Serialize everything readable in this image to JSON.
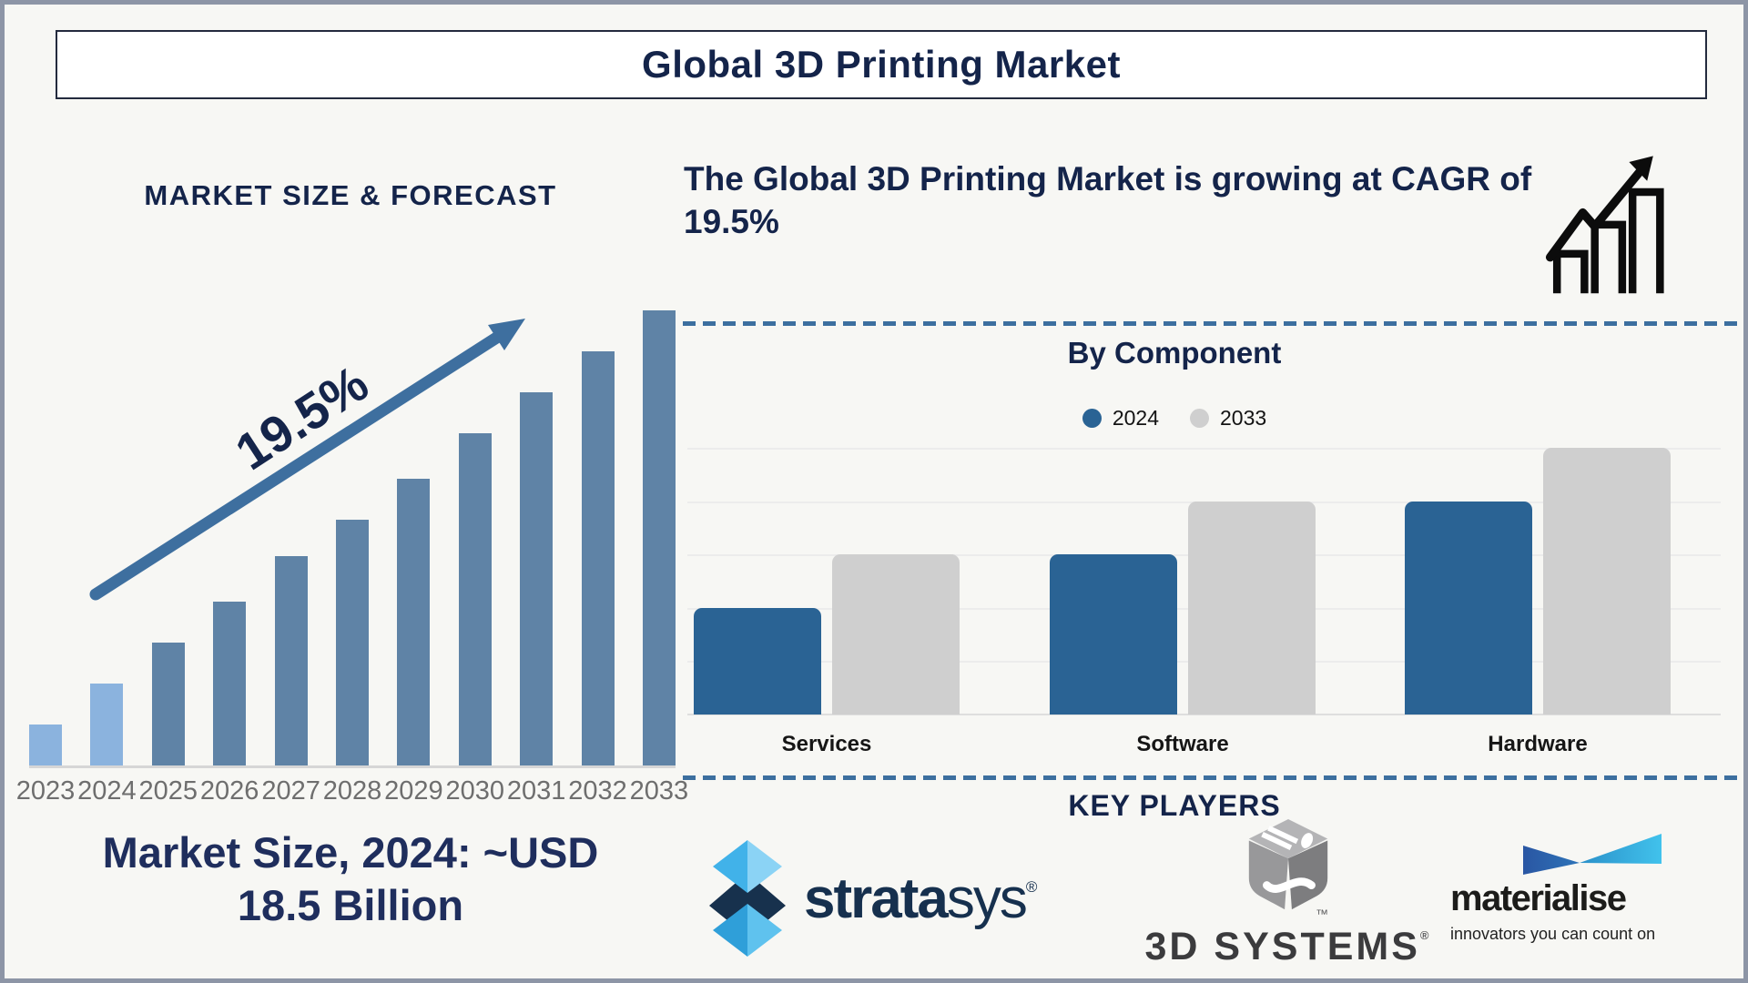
{
  "header": {
    "title": "Global 3D Printing Market"
  },
  "left_section": {
    "title": "MARKET SIZE & FORECAST",
    "cagr_label": "19.5%",
    "caption_line1": "Market Size, 2024: ~USD",
    "caption_line2": "18.5 Billion"
  },
  "right_section": {
    "headline": "The Global 3D Printing Market is growing at CAGR of 19.5%",
    "component_chart": {
      "title": "By Component"
    },
    "key_players": {
      "title": "KEY PLAYERS",
      "players": [
        {
          "name": "stratasys",
          "wordmark_bold": "strata",
          "wordmark_light": "sys",
          "reg_mark": "®",
          "icon": "stratasys-diamonds-icon"
        },
        {
          "name": "3D SYSTEMS",
          "trademark": "™",
          "reg_mark": "®",
          "icon": "3d-systems-cube-icon"
        },
        {
          "name": "materialise",
          "tagline": "innovators you can count on",
          "icon": "materialise-flag-icon"
        }
      ]
    }
  },
  "theme": {
    "bg": "#f7f7f4",
    "frame": "#8d95a6",
    "box_border": "#232a3e",
    "navy": "#14244a",
    "caption_navy": "#1f2e5d",
    "steel": "#3e6f9f",
    "divider": "#3c6f9f",
    "bar_light": "#8bb3de",
    "bar_dark": "#5f83a6",
    "comp_blue": "#2a6394",
    "comp_grey": "#cfcfcf",
    "grid": "#ececec",
    "axis": "#d6d6d6",
    "axis2": "#dedede",
    "year": "#6e6e6e"
  },
  "chart_data": [
    {
      "type": "bar",
      "title": "MARKET SIZE & FORECAST",
      "categories": [
        "2023",
        "2024",
        "2025",
        "2026",
        "2027",
        "2028",
        "2029",
        "2030",
        "2031",
        "2032",
        "2033"
      ],
      "values": [
        9,
        18,
        27,
        36,
        46,
        54,
        63,
        73,
        82,
        91,
        100
      ],
      "value_note": "axis unlabeled; values are relative bar heights in % of the 2033 bar; stated anchor: 2024 ≈ USD 18.5 Billion, CAGR 19.5%",
      "highlight_first_n": 2,
      "annotation": "19.5% growth arrow",
      "xlabel": "",
      "ylabel": "",
      "grid": false,
      "legend": false
    },
    {
      "type": "bar",
      "title": "By Component",
      "categories": [
        "Services",
        "Software",
        "Hardware"
      ],
      "series": [
        {
          "name": "2024",
          "values": [
            2,
            3,
            4
          ]
        },
        {
          "name": "2033",
          "values": [
            3,
            4,
            5
          ]
        }
      ],
      "value_note": "axis unlabeled; values in relative gridline units (5 horizontal gridlines)",
      "ylim": [
        0,
        5
      ],
      "grid": true,
      "legend_position": "top-center"
    }
  ]
}
